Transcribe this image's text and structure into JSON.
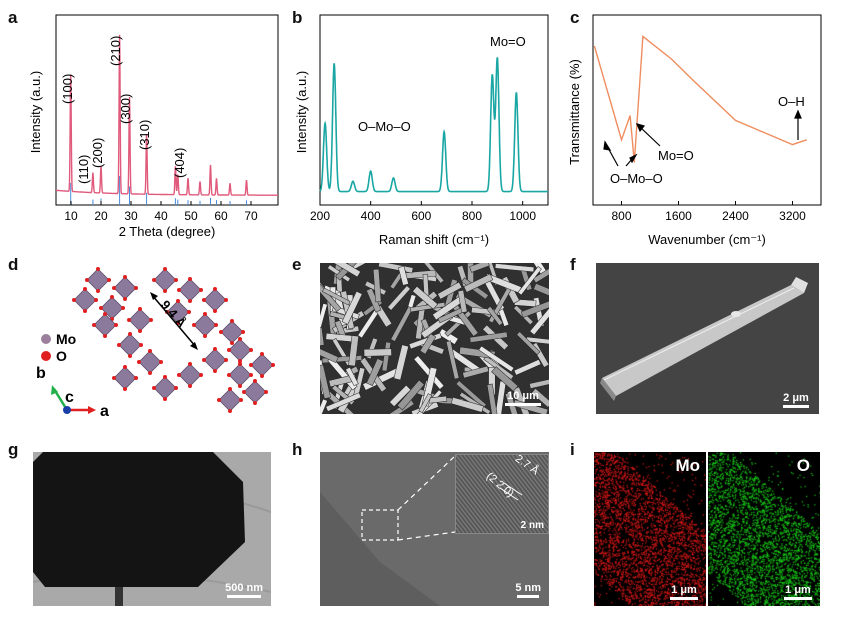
{
  "panels": {
    "a": {
      "label": "a",
      "xlabel": "2 Theta (degree)",
      "ylabel": "Intensity (a.u.)",
      "xticks": [
        "10",
        "20",
        "30",
        "40",
        "50",
        "60",
        "70"
      ],
      "peaks": [
        "(100)",
        "(110)",
        "(200)",
        "(210)",
        "(300)",
        "(310)",
        "(404)"
      ]
    },
    "b": {
      "label": "b",
      "xlabel": "Raman shift (cm⁻¹)",
      "ylabel": "Intensity (a.u.)",
      "xticks": [
        "200",
        "400",
        "600",
        "800",
        "1000"
      ],
      "annotations": [
        "O–Mo–O",
        "Mo=O"
      ]
    },
    "c": {
      "label": "c",
      "xlabel": "Wavenumber (cm⁻¹)",
      "ylabel": "Transmittance (%)",
      "xticks": [
        "800",
        "1600",
        "2400",
        "3200"
      ],
      "annotations": [
        "O–Mo–O",
        "Mo=O",
        "O–H"
      ]
    },
    "d": {
      "label": "d",
      "legend": [
        "Mo",
        "O"
      ],
      "distance": "9.4 Å",
      "axes": [
        "b",
        "c",
        "a"
      ]
    },
    "e": {
      "label": "e",
      "scale": "10 μm"
    },
    "f": {
      "label": "f",
      "scale": "2 μm"
    },
    "g": {
      "label": "g",
      "scale": "500 nm"
    },
    "h": {
      "label": "h",
      "scale": "5 nm",
      "inset_scale": "2 nm",
      "spacing": "2.7 Å",
      "plane": "(2 2 0)"
    },
    "i": {
      "label": "i",
      "map1": "Mo",
      "map2": "O",
      "scale1": "1 μm",
      "scale2": "1 μm"
    }
  },
  "chart_data": [
    {
      "type": "line",
      "panel": "a",
      "xlabel": "2 Theta (degree)",
      "ylabel": "Intensity (a.u.)",
      "xlim": [
        5,
        79
      ],
      "series": [
        {
          "values_note": "",
          "x": [
            9.9,
            17.3,
            20.0,
            26.2,
            29.5,
            35.2,
            44.8,
            45.6,
            49.0,
            53.0,
            56.5,
            58.5,
            63.0,
            68.5
          ],
          "y": [
            0.7,
            0.12,
            0.16,
            0.95,
            0.58,
            0.36,
            0.17,
            0.12,
            0.1,
            0.08,
            0.18,
            0.1,
            0.07,
            0.09
          ]
        }
      ]
    },
    {
      "type": "line",
      "panel": "b",
      "xlabel": "Raman shift (cm⁻¹)",
      "ylabel": "Intensity (a.u.)",
      "xlim": [
        200,
        1100
      ],
      "series": [
        {
          "x": [
            220,
            256,
            330,
            400,
            490,
            690,
            880,
            900,
            975
          ],
          "y": [
            0.4,
            0.75,
            0.06,
            0.12,
            0.08,
            0.35,
            0.68,
            0.78,
            0.58
          ]
        }
      ]
    },
    {
      "type": "line",
      "panel": "c",
      "xlabel": "Wavenumber (cm⁻¹)",
      "ylabel": "Transmittance (%)",
      "xlim": [
        400,
        3600
      ],
      "series": [
        {
          "x": [
            420,
            800,
            920,
            980,
            1100,
            1500,
            1800,
            2400,
            3200,
            3400
          ],
          "y": [
            0.86,
            0.28,
            0.43,
            0.14,
            0.92,
            0.78,
            0.65,
            0.4,
            0.25,
            0.28
          ]
        }
      ]
    }
  ]
}
